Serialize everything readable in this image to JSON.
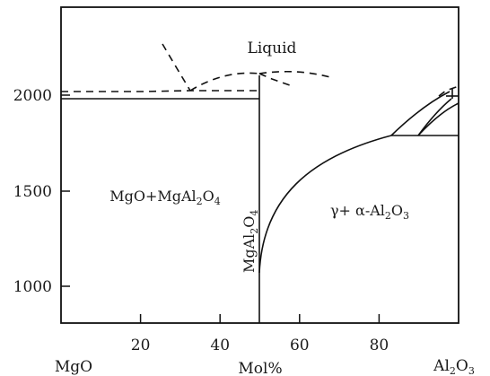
{
  "diagram": {
    "xlabel": "Mol%",
    "left_component": "MgO",
    "right_component": "Al2O3",
    "x_ticks": [
      "20",
      "40",
      "60",
      "80"
    ],
    "y_ticks": [
      "2000",
      "1500",
      "1000"
    ],
    "x_range": [
      0,
      100
    ],
    "y_range": [
      800,
      2500
    ],
    "regions": {
      "liquid": "Liquid",
      "two_phase": "MgO+MgAl2O4",
      "gamma_alpha": "γ+ α-Al2O3",
      "compound": "MgAl2O4"
    }
  }
}
